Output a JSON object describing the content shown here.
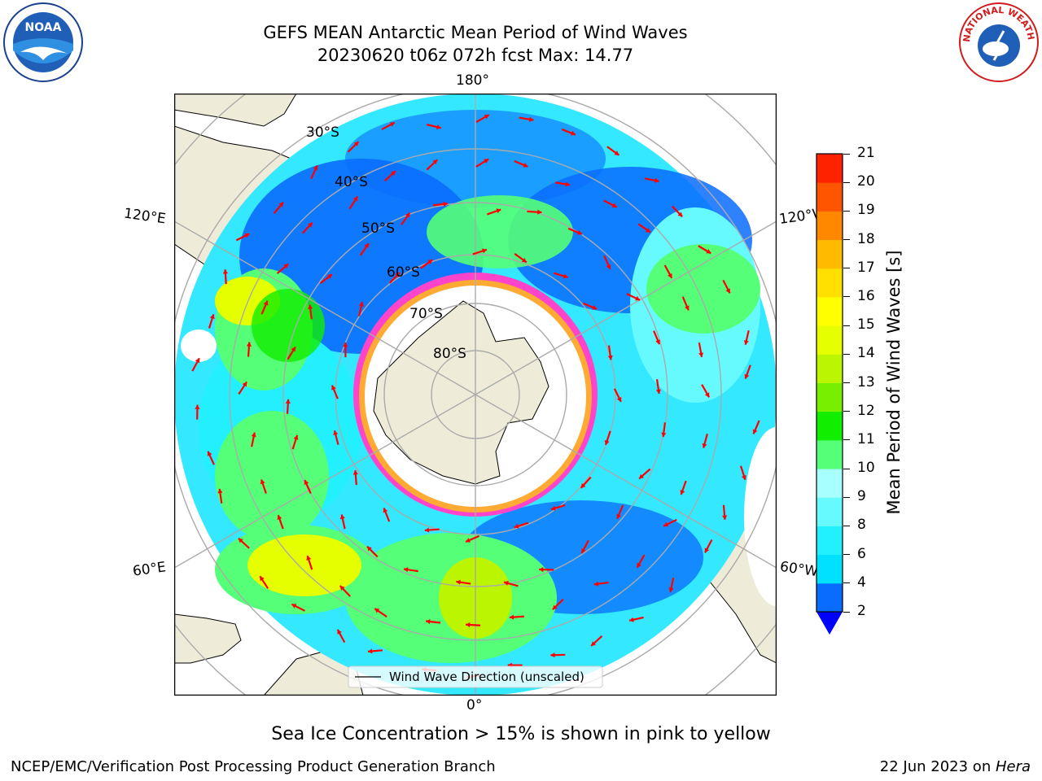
{
  "title": {
    "line1": "GEFS MEAN Antarctic Mean Period of Wind Waves",
    "line2": "20230620 t06z 072h fcst   Max: 14.77"
  },
  "logos": {
    "noaa": {
      "text": "NOAA",
      "icon": "noaa-logo-icon"
    },
    "nws": {
      "text": "NATIONAL WEATHER SERVICE",
      "icon": "nws-logo-icon"
    }
  },
  "map": {
    "projection": "south-polar-stereographic",
    "longitude_labels": {
      "top": "180°",
      "bottom": "0°",
      "left_upper": "120°E",
      "right_upper": "120°W",
      "left_lower": "60°E",
      "right_lower": "60°W"
    },
    "latitude_labels": [
      "30°S",
      "40°S",
      "50°S",
      "60°S",
      "70°S",
      "80°S"
    ],
    "legend": "Wind Wave Direction (unscaled)",
    "arrow_color": "#ff0000",
    "land_color": "#eeecd9",
    "ice_colors": [
      "#ff44cc",
      "#ffaa33",
      "#ffee55"
    ]
  },
  "colorbar": {
    "label": "Mean Period of Wind Waves [s]",
    "ticks": [
      "2",
      "4",
      "6",
      "8",
      "9",
      "10",
      "11",
      "12",
      "13",
      "14",
      "15",
      "16",
      "17",
      "18",
      "19",
      "20",
      "21"
    ],
    "colors": [
      "#0a6cff",
      "#00e0ff",
      "#22f0ff",
      "#66faff",
      "#a8ffff",
      "#55ff77",
      "#11ee00",
      "#77f000",
      "#bbf500",
      "#e6ff00",
      "#ffff00",
      "#ffe000",
      "#ffbb00",
      "#ff8800",
      "#ff5500",
      "#ff2200"
    ],
    "extend_color": "#0000ff"
  },
  "chart_data": {
    "type": "heatmap",
    "title": "GEFS MEAN Antarctic Mean Period of Wind Waves",
    "subtitle": "20230620 t06z 072h fcst   Max: 14.77",
    "variable": "Mean Period of Wind Waves [s]",
    "max_value": 14.77,
    "colorbar_range": [
      2,
      21
    ]
  },
  "notes": {
    "sea_ice": "Sea Ice Concentration > 15% is shown in pink to yellow"
  },
  "footer": {
    "left": "NCEP/EMC/Verification Post Processing Product Generation Branch",
    "right_prefix": "22 Jun 2023 on ",
    "right_machine": "Hera"
  }
}
